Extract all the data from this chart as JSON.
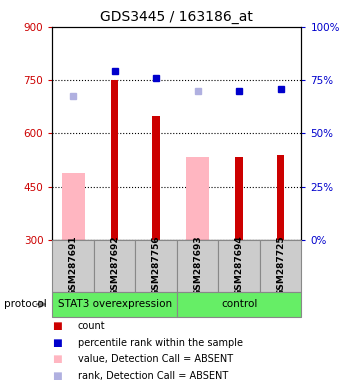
{
  "title": "GDS3445 / 163186_at",
  "samples": [
    "GSM287691",
    "GSM287692",
    "GSM287756",
    "GSM287693",
    "GSM287694",
    "GSM287725"
  ],
  "ylim_left": [
    300,
    900
  ],
  "ylim_right": [
    0,
    100
  ],
  "yticks_left": [
    300,
    450,
    600,
    750,
    900
  ],
  "yticks_right": [
    0,
    25,
    50,
    75,
    100
  ],
  "bar_values": [
    null,
    750,
    650,
    null,
    535,
    540
  ],
  "bar_color": "#cc0000",
  "absent_bar_values": [
    490,
    null,
    null,
    535,
    null,
    null
  ],
  "absent_bar_color": "#ffb6c1",
  "blue_square_values": [
    null,
    775,
    755,
    null,
    720,
    725
  ],
  "blue_square_color": "#0000cc",
  "absent_rank_values": [
    705,
    null,
    null,
    720,
    null,
    null
  ],
  "absent_rank_color": "#b0b0e0",
  "bar_bottom": 300,
  "grid_dotted_lines": [
    450,
    600,
    750
  ],
  "title_fontsize": 10,
  "axis_color_left": "#cc0000",
  "axis_color_right": "#0000cc",
  "sample_area_color": "#cccccc",
  "sample_area_border": "#888888",
  "group_area_color": "#66ee66",
  "groups_def": [
    [
      "STAT3 overexpression",
      0,
      2
    ],
    [
      "control",
      3,
      5
    ]
  ],
  "legend_items": [
    [
      "count",
      "#cc0000"
    ],
    [
      "percentile rank within the sample",
      "#0000cc"
    ],
    [
      "value, Detection Call = ABSENT",
      "#ffb6c1"
    ],
    [
      "rank, Detection Call = ABSENT",
      "#b0b0e0"
    ]
  ]
}
